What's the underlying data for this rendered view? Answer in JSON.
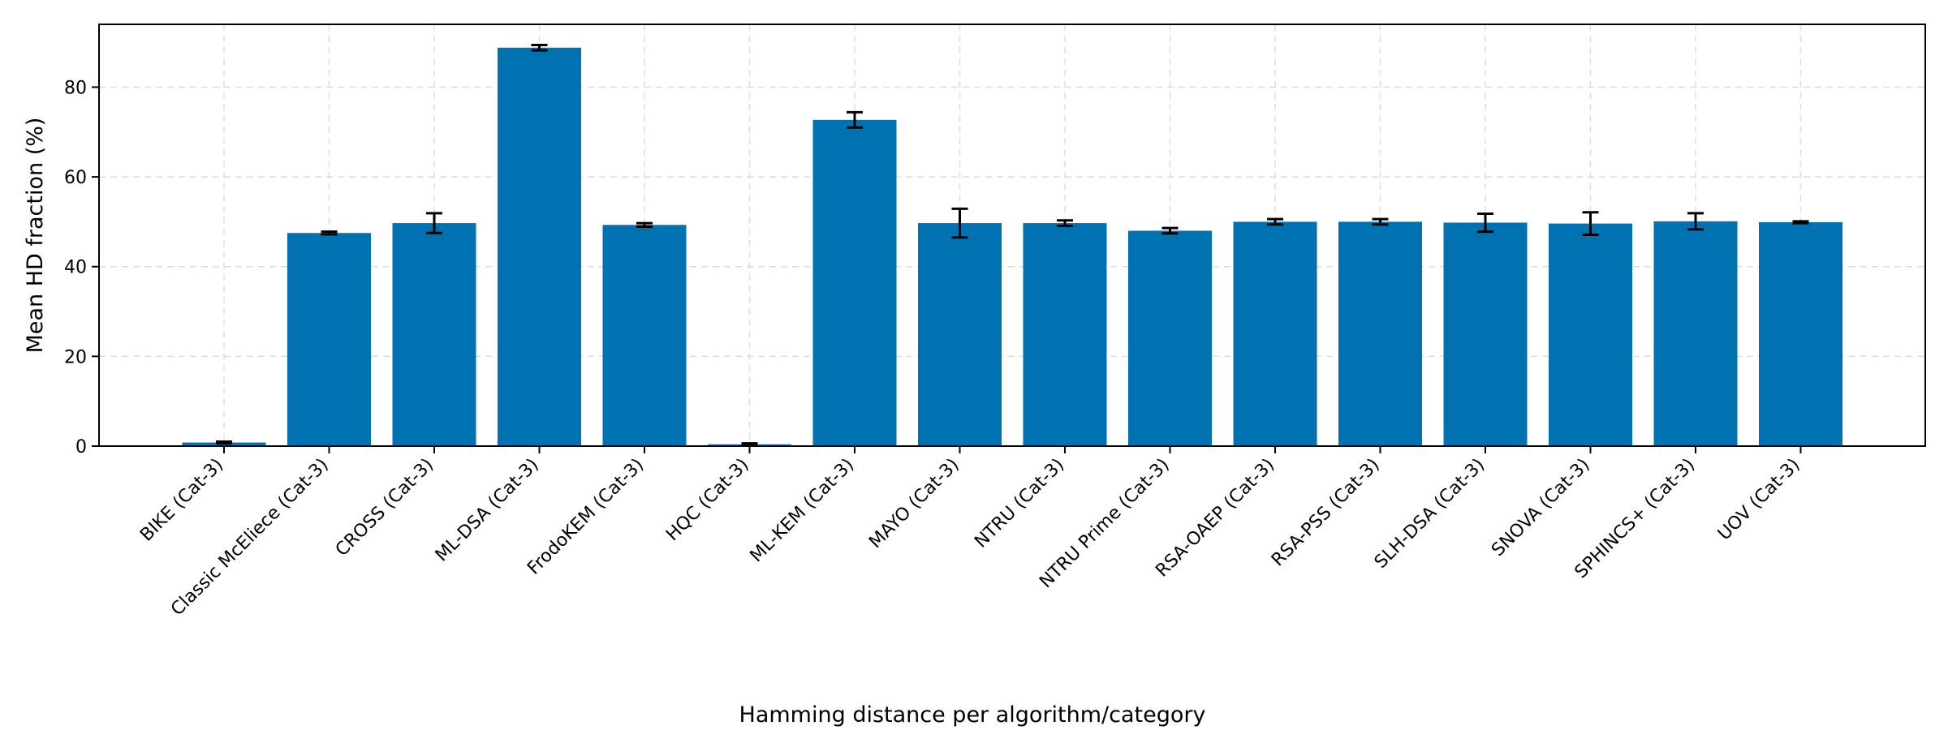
{
  "chart_data": {
    "type": "bar",
    "categories": [
      "BIKE (Cat-3)",
      "Classic McEliece (Cat-3)",
      "CROSS (Cat-3)",
      "ML-DSA (Cat-3)",
      "FrodoKEM (Cat-3)",
      "HQC (Cat-3)",
      "ML-KEM (Cat-3)",
      "MAYO (Cat-3)",
      "NTRU (Cat-3)",
      "NTRU Prime (Cat-3)",
      "RSA-OAEP (Cat-3)",
      "RSA-PSS (Cat-3)",
      "SLH-DSA (Cat-3)",
      "SNOVA (Cat-3)",
      "SPHINCS+ (Cat-3)",
      "UOV (Cat-3)"
    ],
    "values": [
      0.8,
      47.5,
      49.7,
      88.8,
      49.3,
      0.4,
      72.7,
      49.7,
      49.7,
      48.0,
      50.0,
      50.0,
      49.8,
      49.6,
      50.1,
      49.9
    ],
    "errors": [
      0.2,
      0.3,
      2.2,
      0.6,
      0.4,
      0.2,
      1.7,
      3.2,
      0.6,
      0.6,
      0.6,
      0.6,
      2.0,
      2.5,
      1.8,
      0.2
    ],
    "title": "",
    "xlabel": "Hamming distance per algorithm/category",
    "ylabel": "Mean HD fraction (%)",
    "ylim": [
      0,
      94
    ],
    "yticks": [
      0,
      20,
      40,
      60,
      80
    ],
    "grid": true,
    "bar_color": "#0072B2",
    "error_color": "#000000"
  }
}
